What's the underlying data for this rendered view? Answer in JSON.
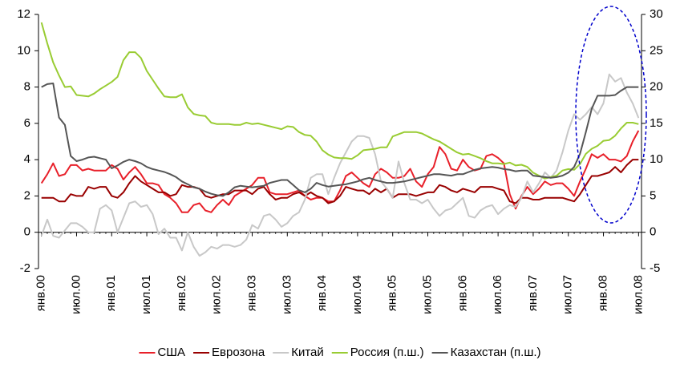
{
  "chart_data": {
    "type": "line",
    "categories": [
      "янв.00",
      null,
      null,
      null,
      null,
      null,
      "июл.00",
      null,
      null,
      null,
      null,
      null,
      "янв.01",
      null,
      null,
      null,
      null,
      null,
      "июл.01",
      null,
      null,
      null,
      null,
      null,
      "янв.02",
      null,
      null,
      null,
      null,
      null,
      "июл.02",
      null,
      null,
      null,
      null,
      null,
      "янв.03",
      null,
      null,
      null,
      null,
      null,
      "июл.03",
      null,
      null,
      null,
      null,
      null,
      "янв.04",
      null,
      null,
      null,
      null,
      null,
      "июл.04",
      null,
      null,
      null,
      null,
      null,
      "янв.05",
      null,
      null,
      null,
      null,
      null,
      "июл.05",
      null,
      null,
      null,
      null,
      null,
      "янв.06",
      null,
      null,
      null,
      null,
      null,
      "июл.06",
      null,
      null,
      null,
      null,
      null,
      "янв.07",
      null,
      null,
      null,
      null,
      null,
      "июл.07",
      null,
      null,
      null,
      null,
      null,
      "янв.08",
      null,
      null,
      null,
      null,
      null,
      "июл.08"
    ],
    "ylim": [
      -2,
      12
    ],
    "yticks": [
      -2,
      0,
      2,
      4,
      6,
      8,
      10,
      12
    ],
    "y2lim": [
      -5,
      30
    ],
    "y2ticks": [
      -5,
      0,
      5,
      10,
      15,
      20,
      25,
      30
    ],
    "series": [
      {
        "name": "США",
        "color": "#e8202a",
        "values": [
          2.7,
          3.2,
          3.8,
          3.1,
          3.2,
          3.7,
          3.7,
          3.4,
          3.5,
          3.4,
          3.4,
          3.4,
          3.7,
          3.5,
          2.9,
          3.3,
          3.6,
          3.2,
          2.7,
          2.7,
          2.6,
          2.1,
          1.9,
          1.6,
          1.1,
          1.1,
          1.5,
          1.6,
          1.2,
          1.1,
          1.5,
          1.8,
          1.5,
          2.0,
          2.2,
          2.4,
          2.6,
          3.0,
          3.0,
          2.2,
          2.1,
          2.1,
          2.1,
          2.2,
          2.3,
          2.0,
          1.8,
          1.9,
          1.9,
          1.7,
          1.7,
          2.3,
          3.1,
          3.3,
          3.0,
          2.7,
          2.5,
          3.2,
          3.5,
          3.3,
          3.0,
          3.0,
          3.1,
          3.5,
          2.8,
          2.5,
          3.2,
          3.6,
          4.7,
          4.3,
          3.5,
          3.4,
          4.0,
          3.6,
          3.4,
          3.5,
          4.2,
          4.3,
          4.1,
          3.8,
          2.1,
          1.3,
          2.0,
          2.5,
          2.1,
          2.4,
          2.8,
          2.6,
          2.7,
          2.7,
          2.4,
          2.0,
          2.8,
          3.5,
          4.3,
          4.1,
          4.3,
          4.0,
          4.0,
          3.9,
          4.2,
          5.0,
          5.6
        ]
      },
      {
        "name": "Еврозона",
        "color": "#990000",
        "values": [
          1.9,
          1.9,
          1.9,
          1.7,
          1.7,
          2.1,
          2.0,
          2.0,
          2.5,
          2.4,
          2.5,
          2.5,
          2.0,
          1.9,
          2.2,
          2.7,
          3.1,
          2.8,
          2.6,
          2.4,
          2.2,
          2.2,
          2.0,
          2.1,
          2.6,
          2.5,
          2.5,
          2.4,
          2.0,
          1.9,
          2.0,
          2.1,
          2.1,
          2.3,
          2.3,
          2.3,
          2.1,
          2.4,
          2.5,
          2.1,
          1.8,
          1.9,
          1.9,
          2.1,
          2.2,
          2.0,
          2.2,
          2.0,
          1.9,
          1.6,
          1.7,
          2.0,
          2.5,
          2.4,
          2.3,
          2.3,
          2.1,
          2.4,
          2.2,
          2.4,
          1.9,
          2.1,
          2.1,
          2.1,
          2.0,
          2.1,
          2.2,
          2.2,
          2.6,
          2.5,
          2.3,
          2.2,
          2.4,
          2.3,
          2.2,
          2.5,
          2.5,
          2.5,
          2.4,
          2.3,
          1.7,
          1.6,
          1.9,
          1.9,
          1.8,
          1.8,
          1.9,
          1.9,
          1.9,
          1.9,
          1.8,
          1.7,
          2.1,
          2.6,
          3.1,
          3.1,
          3.2,
          3.3,
          3.6,
          3.3,
          3.7,
          4.0,
          4.0
        ]
      },
      {
        "name": "Китай",
        "color": "#c8c8c8",
        "values": [
          -0.2,
          0.7,
          -0.2,
          -0.3,
          0.1,
          0.5,
          0.5,
          0.3,
          0.0,
          0.0,
          1.3,
          1.5,
          1.2,
          0.0,
          0.8,
          1.6,
          1.7,
          1.4,
          1.5,
          1.0,
          -0.1,
          0.2,
          -0.3,
          -0.3,
          -1.0,
          0.0,
          -0.8,
          -1.3,
          -1.1,
          -0.8,
          -0.9,
          -0.7,
          -0.7,
          -0.8,
          -0.7,
          -0.4,
          0.4,
          0.2,
          0.9,
          1.0,
          0.7,
          0.3,
          0.5,
          0.9,
          1.1,
          1.8,
          3.0,
          3.2,
          3.2,
          2.1,
          3.0,
          3.8,
          4.4,
          5.0,
          5.3,
          5.3,
          5.2,
          4.3,
          2.8,
          2.4,
          1.9,
          3.9,
          2.7,
          1.8,
          1.8,
          1.6,
          1.8,
          1.3,
          0.9,
          1.2,
          1.3,
          1.6,
          1.9,
          0.9,
          0.8,
          1.2,
          1.4,
          1.5,
          1.0,
          1.3,
          1.5,
          1.4,
          1.9,
          2.8,
          2.2,
          2.7,
          3.3,
          3.0,
          3.4,
          4.4,
          5.6,
          6.5,
          6.2,
          6.5,
          6.9,
          6.5,
          7.1,
          8.7,
          8.3,
          8.5,
          7.7,
          7.1,
          6.3
        ]
      },
      {
        "name": "Россия (п.ш.)",
        "color": "#99cc33",
        "axis": "y2",
        "values": [
          28.9,
          26.0,
          23.4,
          21.6,
          20.0,
          20.1,
          18.9,
          18.8,
          18.7,
          19.1,
          19.7,
          20.2,
          20.7,
          21.4,
          23.7,
          24.8,
          24.8,
          24.0,
          22.2,
          21.0,
          19.8,
          18.7,
          18.6,
          18.6,
          19.0,
          17.2,
          16.3,
          16.1,
          16.0,
          15.1,
          14.9,
          14.9,
          14.9,
          14.8,
          14.8,
          15.1,
          14.9,
          15.0,
          14.8,
          14.6,
          14.4,
          14.2,
          14.6,
          14.5,
          13.8,
          13.4,
          13.3,
          12.5,
          11.3,
          10.7,
          10.3,
          10.2,
          10.2,
          10.1,
          10.6,
          11.3,
          11.4,
          11.5,
          11.7,
          11.7,
          13.2,
          13.5,
          13.8,
          13.8,
          13.8,
          13.6,
          13.2,
          12.8,
          12.5,
          12.0,
          11.5,
          11.0,
          10.7,
          10.8,
          10.5,
          10.2,
          9.8,
          9.5,
          9.5,
          9.4,
          9.6,
          9.2,
          9.3,
          9.0,
          8.2,
          7.8,
          7.4,
          7.6,
          7.8,
          8.5,
          8.7,
          8.6,
          9.4,
          10.8,
          11.5,
          11.9,
          12.6,
          12.7,
          13.3,
          14.3,
          15.1,
          15.1,
          14.9
        ]
      },
      {
        "name": "Казахстан (п.ш.)",
        "color": "#555555",
        "axis": "y2",
        "values": [
          20.0,
          20.4,
          20.5,
          15.8,
          14.8,
          10.5,
          9.8,
          10.0,
          10.3,
          10.4,
          10.2,
          10.0,
          8.8,
          9.2,
          9.7,
          10.0,
          9.8,
          9.5,
          9.0,
          8.7,
          8.5,
          8.3,
          8.0,
          7.6,
          7.0,
          6.6,
          6.2,
          6.0,
          5.6,
          5.3,
          5.1,
          5.0,
          5.5,
          6.2,
          6.4,
          6.3,
          6.2,
          6.3,
          6.4,
          6.8,
          7.0,
          7.2,
          7.2,
          6.5,
          5.8,
          5.5,
          6.0,
          6.8,
          6.5,
          6.3,
          6.4,
          6.5,
          6.6,
          6.8,
          7.0,
          7.3,
          7.5,
          7.2,
          7.0,
          6.8,
          6.8,
          6.9,
          7.0,
          7.2,
          7.4,
          7.6,
          7.8,
          8.0,
          8.0,
          7.9,
          7.8,
          8.0,
          8.0,
          8.3,
          8.6,
          8.8,
          8.9,
          9.0,
          8.9,
          8.7,
          8.6,
          8.4,
          8.5,
          8.5,
          7.8,
          7.7,
          7.6,
          7.5,
          7.6,
          7.8,
          8.2,
          9.0,
          10.8,
          13.8,
          17.0,
          18.8,
          18.8,
          18.8,
          18.9,
          19.5,
          20.0,
          20.0,
          20.0
        ]
      }
    ]
  }
}
